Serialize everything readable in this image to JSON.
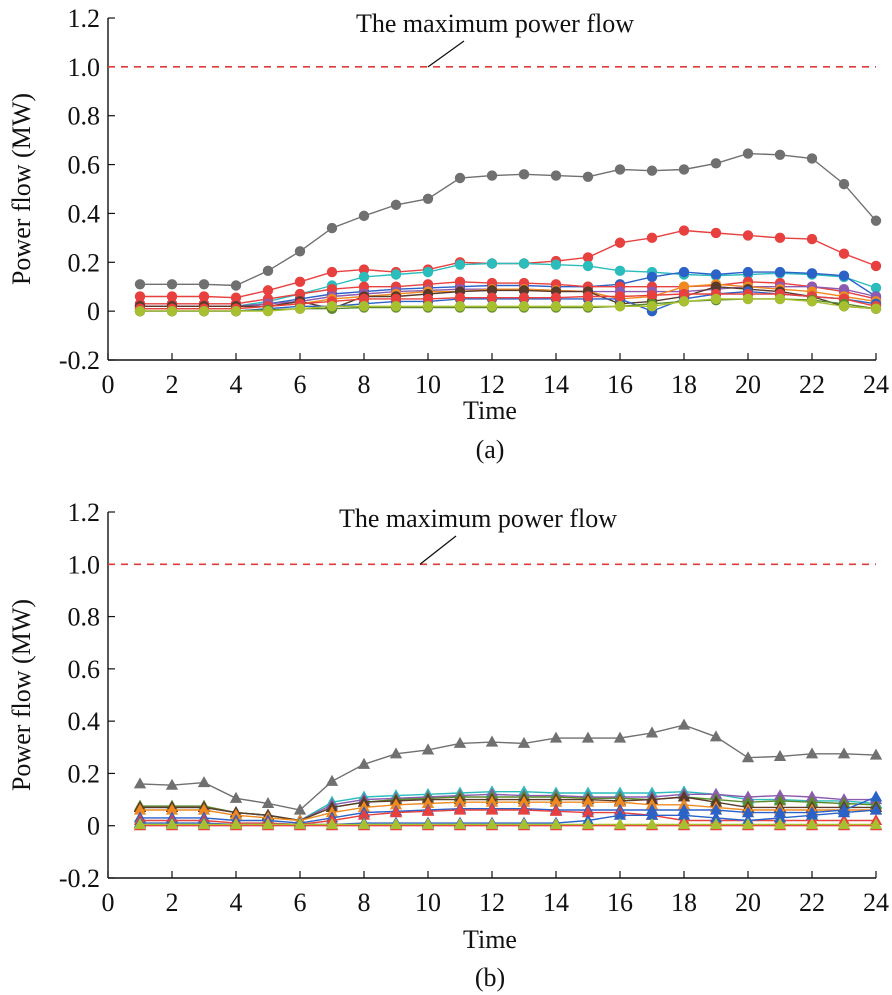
{
  "figure": {
    "panels": [
      {
        "caption": "(a)"
      },
      {
        "caption": "(b)"
      }
    ]
  },
  "chart_data": [
    {
      "type": "line",
      "panel_label": "(a)",
      "title": "",
      "xlabel": "Time",
      "ylabel": "Power flow (MW)",
      "xlim": [
        0,
        24
      ],
      "ylim": [
        -0.2,
        1.2
      ],
      "xticks": [
        "0",
        "2",
        "4",
        "6",
        "8",
        "10",
        "12",
        "14",
        "16",
        "18",
        "20",
        "22",
        "24"
      ],
      "yticks": [
        "-0.2",
        "0",
        "0.2",
        "0.4",
        "0.6",
        "0.8",
        "1.0",
        "1.2"
      ],
      "marker": "circle",
      "grid": false,
      "annotation": {
        "text": "The maximum power flow",
        "y": 1.0,
        "line_color": "#e03a3a"
      },
      "x": [
        1,
        2,
        3,
        4,
        5,
        6,
        7,
        8,
        9,
        10,
        11,
        12,
        13,
        14,
        15,
        16,
        17,
        18,
        19,
        20,
        21,
        22,
        23,
        24
      ],
      "series": [
        {
          "color": "#707070",
          "values": [
            0.11,
            0.11,
            0.11,
            0.105,
            0.165,
            0.245,
            0.34,
            0.39,
            0.435,
            0.46,
            0.545,
            0.555,
            0.56,
            0.555,
            0.55,
            0.58,
            0.575,
            0.58,
            0.605,
            0.645,
            0.64,
            0.625,
            0.52,
            0.37
          ]
        },
        {
          "color": "#e8403f",
          "values": [
            0.06,
            0.06,
            0.06,
            0.055,
            0.085,
            0.12,
            0.16,
            0.17,
            0.16,
            0.17,
            0.2,
            0.195,
            0.195,
            0.205,
            0.22,
            0.28,
            0.3,
            0.33,
            0.32,
            0.31,
            0.3,
            0.295,
            0.235,
            0.185
          ]
        },
        {
          "color": "#2bbcbc",
          "values": [
            0.02,
            0.02,
            0.02,
            0.02,
            0.04,
            0.07,
            0.105,
            0.14,
            0.15,
            0.16,
            0.19,
            0.195,
            0.195,
            0.19,
            0.185,
            0.165,
            0.16,
            0.15,
            0.145,
            0.15,
            0.155,
            0.15,
            0.14,
            0.095
          ]
        },
        {
          "color": "#2a62c8",
          "values": [
            0.02,
            0.02,
            0.02,
            0.02,
            0.03,
            0.05,
            0.07,
            0.08,
            0.09,
            0.095,
            0.1,
            0.105,
            0.105,
            0.1,
            0.1,
            0.11,
            0.14,
            0.16,
            0.15,
            0.16,
            0.16,
            0.155,
            0.145,
            0.06
          ]
        },
        {
          "color": "#e8403f",
          "values": [
            0.03,
            0.03,
            0.03,
            0.03,
            0.05,
            0.07,
            0.09,
            0.1,
            0.1,
            0.11,
            0.12,
            0.115,
            0.115,
            0.11,
            0.1,
            0.1,
            0.1,
            0.1,
            0.105,
            0.12,
            0.115,
            0.1,
            0.08,
            0.05
          ]
        },
        {
          "color": "#8c5bb0",
          "values": [
            0.02,
            0.02,
            0.02,
            0.02,
            0.03,
            0.04,
            0.06,
            0.07,
            0.08,
            0.085,
            0.09,
            0.09,
            0.09,
            0.085,
            0.08,
            0.08,
            0.08,
            0.08,
            0.09,
            0.1,
            0.1,
            0.1,
            0.09,
            0.06
          ]
        },
        {
          "color": "#f08a20",
          "values": [
            0.01,
            0.01,
            0.01,
            0.01,
            0.02,
            0.03,
            0.05,
            0.06,
            0.07,
            0.08,
            0.08,
            0.09,
            0.09,
            0.085,
            0.08,
            0.05,
            0.06,
            0.1,
            0.11,
            0.1,
            0.09,
            0.08,
            0.06,
            0.04
          ]
        },
        {
          "color": "#5a3a2a",
          "values": [
            0.02,
            0.02,
            0.02,
            0.02,
            0.02,
            0.04,
            0.01,
            0.06,
            0.06,
            0.07,
            0.08,
            0.085,
            0.085,
            0.08,
            0.08,
            0.03,
            0.04,
            0.06,
            0.1,
            0.09,
            0.08,
            0.06,
            0.02,
            0.01
          ]
        },
        {
          "color": "#2a62c8",
          "values": [
            0.0,
            0.0,
            0.0,
            0.0,
            0.01,
            0.02,
            0.02,
            0.03,
            0.04,
            0.04,
            0.05,
            0.05,
            0.05,
            0.05,
            0.05,
            0.05,
            0.0,
            0.05,
            0.07,
            0.08,
            0.07,
            0.06,
            0.05,
            0.03
          ]
        },
        {
          "color": "#e8403f",
          "values": [
            0.01,
            0.01,
            0.01,
            0.01,
            0.02,
            0.03,
            0.04,
            0.05,
            0.05,
            0.05,
            0.055,
            0.055,
            0.055,
            0.055,
            0.06,
            0.06,
            0.065,
            0.07,
            0.07,
            0.07,
            0.07,
            0.06,
            0.05,
            0.02
          ]
        },
        {
          "color": "#5a8a2a",
          "values": [
            0.0,
            0.0,
            0.0,
            0.0,
            0.005,
            0.01,
            0.01,
            0.015,
            0.015,
            0.015,
            0.015,
            0.015,
            0.015,
            0.015,
            0.015,
            0.02,
            0.03,
            0.04,
            0.045,
            0.05,
            0.05,
            0.045,
            0.03,
            0.01
          ]
        },
        {
          "color": "#a8c030",
          "values": [
            0.0,
            0.0,
            0.0,
            0.0,
            0.0,
            0.01,
            0.02,
            0.02,
            0.02,
            0.02,
            0.02,
            0.02,
            0.02,
            0.02,
            0.02,
            0.02,
            0.02,
            0.04,
            0.05,
            0.05,
            0.05,
            0.04,
            0.02,
            0.01
          ]
        }
      ]
    },
    {
      "type": "line",
      "panel_label": "(b)",
      "title": "",
      "xlabel": "Time",
      "ylabel": "Power flow (MW)",
      "xlim": [
        0,
        24
      ],
      "ylim": [
        -0.2,
        1.2
      ],
      "xticks": [
        "0",
        "2",
        "4",
        "6",
        "8",
        "10",
        "12",
        "14",
        "16",
        "18",
        "20",
        "22",
        "24"
      ],
      "yticks": [
        "-0.2",
        "0",
        "0.2",
        "0.4",
        "0.6",
        "0.8",
        "1.0",
        "1.2"
      ],
      "marker": "triangle",
      "grid": false,
      "annotation": {
        "text": "The maximum power flow",
        "y": 1.0,
        "line_color": "#e03a3a"
      },
      "x": [
        1,
        2,
        3,
        4,
        5,
        6,
        7,
        8,
        9,
        10,
        11,
        12,
        13,
        14,
        15,
        16,
        17,
        18,
        19,
        20,
        21,
        22,
        23,
        24
      ],
      "series": [
        {
          "color": "#707070",
          "values": [
            0.16,
            0.155,
            0.165,
            0.105,
            0.085,
            0.06,
            0.17,
            0.235,
            0.275,
            0.29,
            0.315,
            0.32,
            0.315,
            0.335,
            0.335,
            0.335,
            0.355,
            0.385,
            0.34,
            0.26,
            0.265,
            0.275,
            0.275,
            0.27
          ]
        },
        {
          "color": "#2bbcbc",
          "values": [
            0.07,
            0.07,
            0.07,
            0.05,
            0.04,
            0.02,
            0.09,
            0.11,
            0.115,
            0.12,
            0.125,
            0.13,
            0.13,
            0.125,
            0.125,
            0.125,
            0.125,
            0.13,
            0.12,
            0.1,
            0.1,
            0.095,
            0.095,
            0.085
          ]
        },
        {
          "color": "#8c5bb0",
          "values": [
            0.07,
            0.07,
            0.07,
            0.05,
            0.04,
            0.02,
            0.08,
            0.1,
            0.105,
            0.11,
            0.115,
            0.12,
            0.115,
            0.115,
            0.11,
            0.11,
            0.11,
            0.12,
            0.12,
            0.11,
            0.115,
            0.11,
            0.1,
            0.1
          ]
        },
        {
          "color": "#5a8a2a",
          "values": [
            0.075,
            0.075,
            0.075,
            0.05,
            0.04,
            0.02,
            0.07,
            0.09,
            0.1,
            0.105,
            0.11,
            0.11,
            0.11,
            0.11,
            0.105,
            0.105,
            0.1,
            0.11,
            0.1,
            0.09,
            0.095,
            0.09,
            0.085,
            0.08
          ]
        },
        {
          "color": "#5a3a2a",
          "values": [
            0.07,
            0.07,
            0.07,
            0.05,
            0.04,
            0.02,
            0.07,
            0.09,
            0.095,
            0.1,
            0.1,
            0.1,
            0.1,
            0.1,
            0.1,
            0.095,
            0.1,
            0.11,
            0.09,
            0.07,
            0.07,
            0.07,
            0.07,
            0.07
          ]
        },
        {
          "color": "#f08a20",
          "values": [
            0.06,
            0.06,
            0.06,
            0.04,
            0.03,
            0.02,
            0.05,
            0.07,
            0.08,
            0.085,
            0.09,
            0.09,
            0.09,
            0.09,
            0.09,
            0.09,
            0.08,
            0.08,
            0.07,
            0.06,
            0.06,
            0.06,
            0.06,
            0.06
          ]
        },
        {
          "color": "#2a62c8",
          "values": [
            0.03,
            0.03,
            0.03,
            0.02,
            0.02,
            0.01,
            0.03,
            0.05,
            0.055,
            0.06,
            0.065,
            0.065,
            0.065,
            0.06,
            0.06,
            0.06,
            0.06,
            0.06,
            0.06,
            0.05,
            0.05,
            0.05,
            0.06,
            0.11
          ]
        },
        {
          "color": "#e8403f",
          "values": [
            0.02,
            0.02,
            0.02,
            0.01,
            0.01,
            0.005,
            0.02,
            0.04,
            0.05,
            0.055,
            0.06,
            0.06,
            0.06,
            0.055,
            0.05,
            0.05,
            0.04,
            0.02,
            0.02,
            0.02,
            0.02,
            0.02,
            0.02,
            0.02
          ]
        },
        {
          "color": "#2a62c8",
          "values": [
            0.01,
            0.01,
            0.01,
            0.005,
            0.005,
            0.005,
            0.005,
            0.01,
            0.01,
            0.01,
            0.01,
            0.01,
            0.01,
            0.01,
            0.02,
            0.04,
            0.04,
            0.04,
            0.03,
            0.02,
            0.03,
            0.04,
            0.05,
            0.06
          ]
        },
        {
          "color": "#e8403f",
          "values": [
            0.0,
            0.0,
            0.0,
            0.0,
            0.0,
            0.0,
            0.0,
            0.0,
            0.0,
            0.0,
            0.0,
            0.0,
            0.0,
            0.0,
            0.0,
            0.0,
            0.0,
            0.0,
            0.0,
            0.0,
            0.0,
            0.0,
            0.0,
            0.0
          ]
        },
        {
          "color": "#a8c030",
          "values": [
            0.005,
            0.005,
            0.005,
            0.005,
            0.005,
            0.005,
            0.005,
            0.005,
            0.005,
            0.005,
            0.005,
            0.005,
            0.005,
            0.005,
            0.005,
            0.005,
            0.005,
            0.005,
            0.005,
            0.005,
            0.005,
            0.005,
            0.005,
            0.005
          ]
        }
      ]
    }
  ]
}
